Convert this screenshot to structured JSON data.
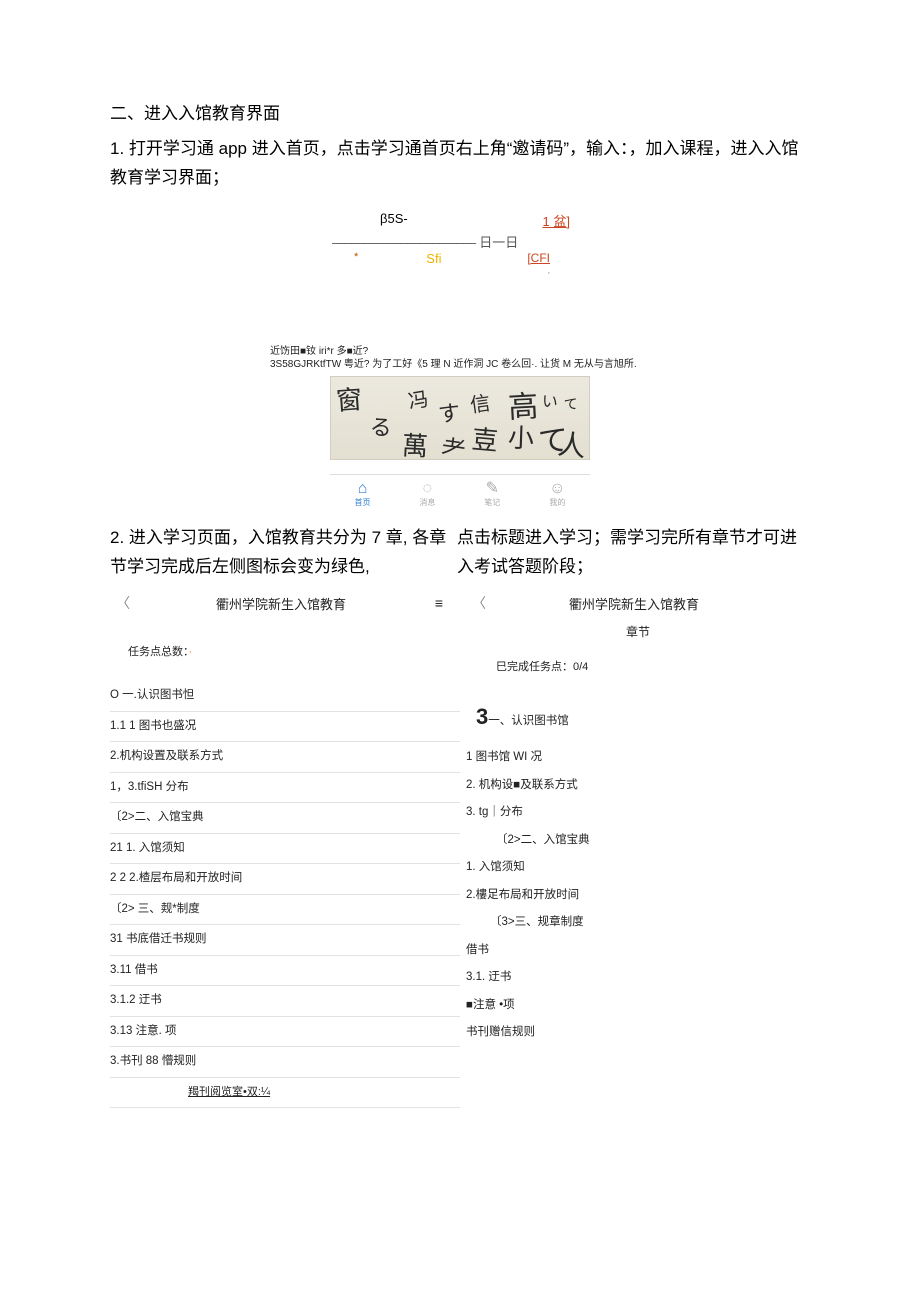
{
  "section": {
    "header": "二、进入入馆教育界面",
    "step1": "1. 打开学习通 app 进入首页，点击学习通首页右上角“邀请码”，输入：，加入课程，进入入馆教育学习界面；",
    "step2_left": "2. 进入学习页面，入馆教育共分为 7 章, 各章节学习完成后左侧图标会变为绿色,",
    "step2_right": "点击标题进入学习；需学习完所有章节才可进入考试答题阶段；"
  },
  "phone_demo": {
    "row1_left": "β5S-",
    "row1_right": "1 盆]",
    "row2_dash": "–––––––––––––––––––––––",
    "row2_end": "日一日",
    "row3_star": "*",
    "row3_mid": "Sfi",
    "row3_right": "[CFI",
    "row3_comma": ","
  },
  "ocr": {
    "line1": "近饬田■钕 iri*r 多■近?",
    "line2": "3S58GJRKtfTW 粤近? 为了工好《5 理 N 近作洞 JC 卷么回·. 让货 M 无从与言旭所."
  },
  "tabbar": {
    "home": "首页",
    "msg": "消息",
    "note": "笔记",
    "me": "我的"
  },
  "screen_left": {
    "title": "衢州学院新生入馆教育",
    "task_label": "任务点总数：",
    "task_num": "·",
    "items": [
      {
        "text": "O 一.认识图书怛",
        "cls": "ind-0 ch"
      },
      {
        "text": "1.1 1 图书也盛况",
        "cls": "ind-1"
      },
      {
        "text": "2.机构设置及联系方式",
        "cls": "ind-2"
      },
      {
        "text": "1，3.tfiSH 分布",
        "cls": "ind-1"
      },
      {
        "text": "〔2>二、入馆宝典",
        "cls": "ind-0 ch"
      },
      {
        "text": "21 1. 入馆须知",
        "cls": "ind-1"
      },
      {
        "text": "2 2 2.楂层布局和开放时间",
        "cls": "ind-1"
      },
      {
        "text": "〔2> 三、觌*制度",
        "cls": "ind-0 ch"
      },
      {
        "text": "31 书底借迁书规则",
        "cls": "ind-1"
      },
      {
        "text": "3.11 借书",
        "cls": "ind-1"
      },
      {
        "text": "3.1.2 迂书",
        "cls": "ind-1"
      },
      {
        "text": "3.13 注意. 项",
        "cls": "ind-1"
      },
      {
        "text": "3.书刊 88 懵规则",
        "cls": "ind-1"
      },
      {
        "text": "羯刊阅览室•双:¼",
        "cls": "last"
      }
    ]
  },
  "screen_right": {
    "title": "衢州学院新生入馆教育",
    "subtitle": "章节",
    "done": "巳完成任务点：0/4",
    "big3": "3",
    "ch1_tail": "一、认识图书馆",
    "items_ch1": [
      "1 图书馆 WI 况",
      "2. 机构设■及联系方式",
      "3. tg｜分布"
    ],
    "ch2": "〔2>二、入馆宝典",
    "items_ch2": [
      "1. 入馆须知",
      "2.樓足布局和开放时间"
    ],
    "ch3": "〔3>三、规章制度",
    "items_ch3": [
      "借书",
      "3.1. 迂书",
      "■注意 •项",
      "书刊赠信规则"
    ]
  }
}
